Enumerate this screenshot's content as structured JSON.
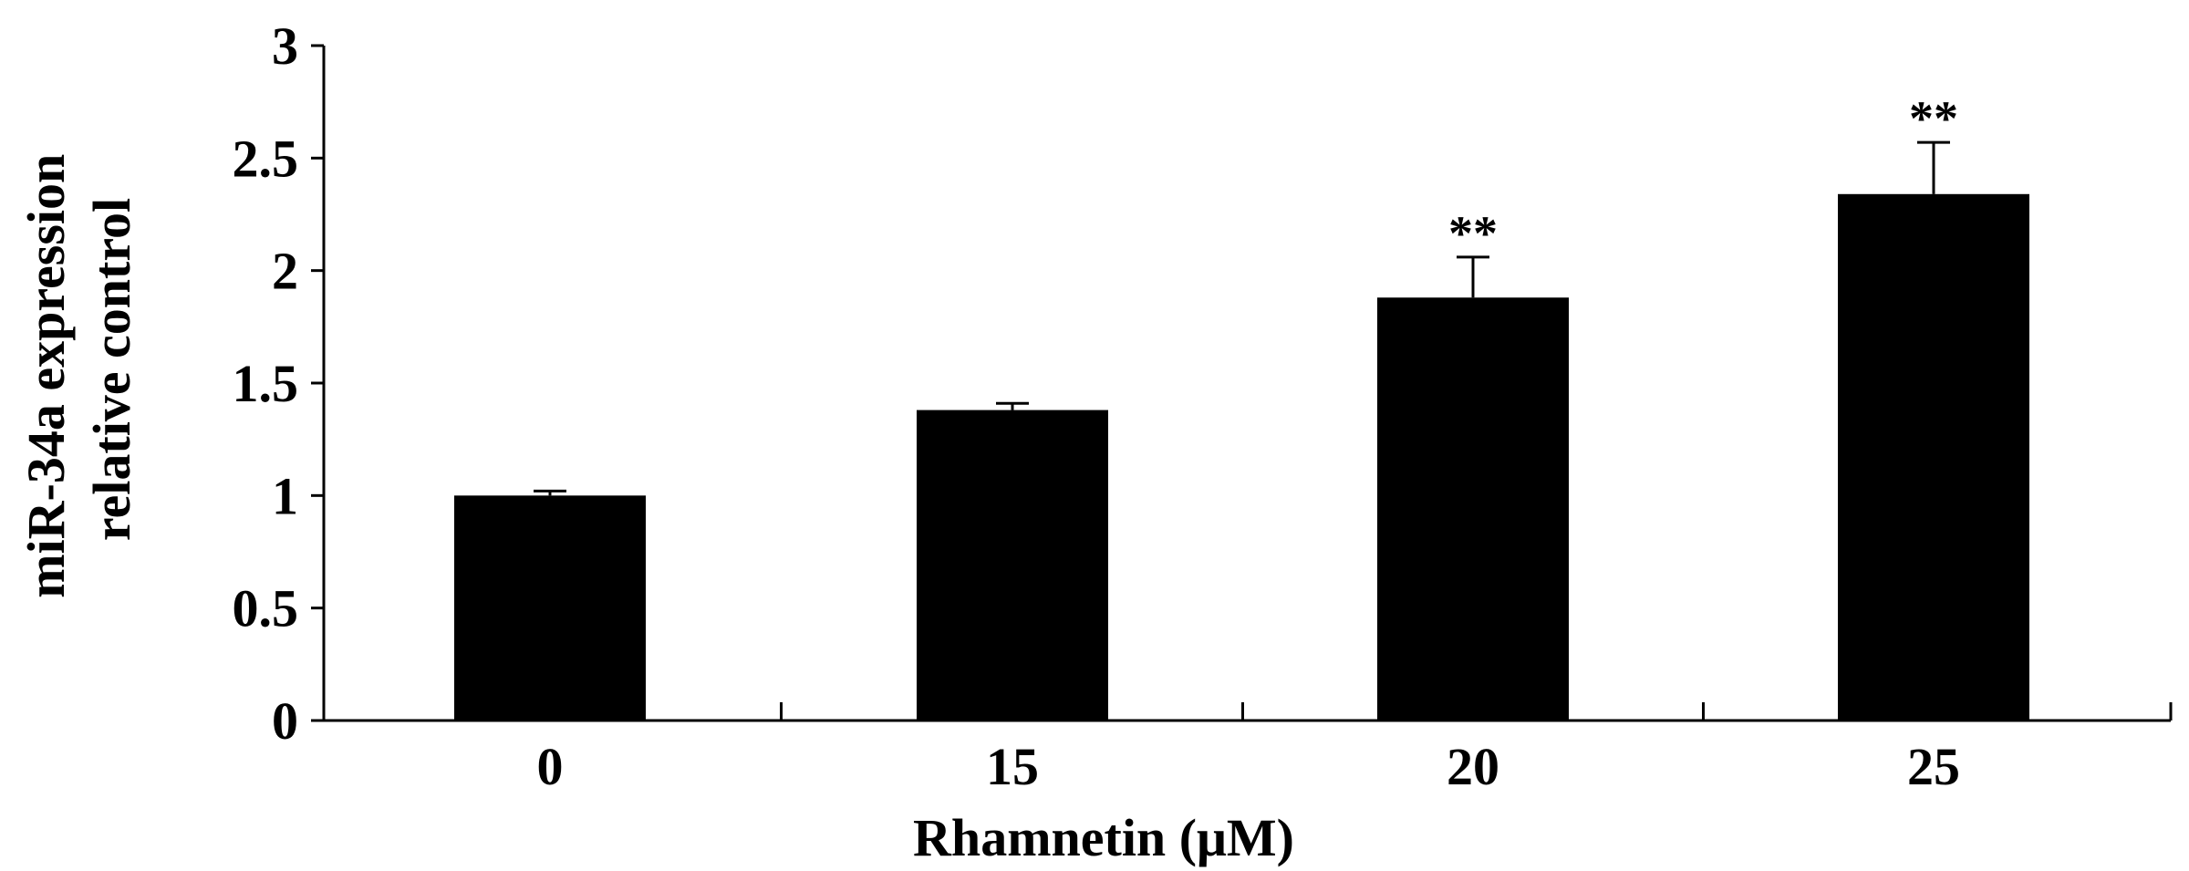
{
  "chart_data": {
    "type": "bar",
    "categories": [
      "0",
      "15",
      "20",
      "25"
    ],
    "values": [
      1.0,
      1.38,
      1.88,
      2.34
    ],
    "error_upper": [
      0.02,
      0.03,
      0.18,
      0.23
    ],
    "annotations": [
      "",
      "",
      "**",
      "**"
    ],
    "ylabel_lines": [
      "miR-34a expression",
      "relative control"
    ],
    "xlabel": "Rhamnetin (μM)",
    "ylim": [
      0,
      3
    ],
    "yticks": [
      0,
      0.5,
      1,
      1.5,
      2,
      2.5,
      3
    ],
    "ytick_labels": [
      "0",
      "0.5",
      "1",
      "1.5",
      "2",
      "2.5",
      "3"
    ],
    "grid": false,
    "legend": "none",
    "bar_color": "#000000"
  }
}
